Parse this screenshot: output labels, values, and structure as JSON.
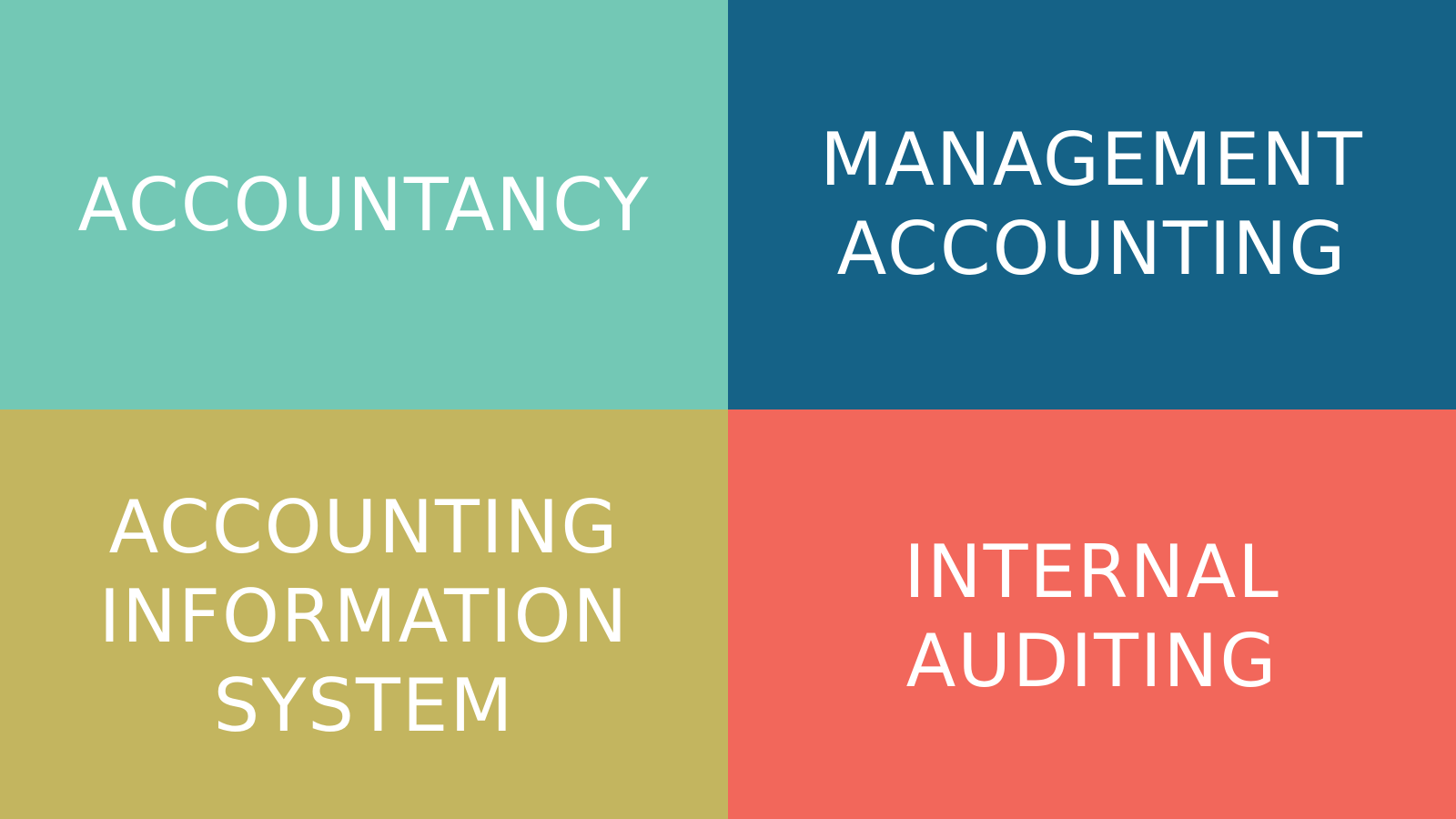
{
  "tiles": {
    "accountancy": {
      "lines": [
        "ACCOUNTANCY"
      ],
      "background": "#73c8b5"
    },
    "management_accounting": {
      "lines": [
        "MANAGEMENT",
        "ACCOUNTING"
      ],
      "background": "#156287"
    },
    "accounting_information_system": {
      "lines": [
        "ACCOUNTING",
        "INFORMATION",
        "SYSTEM"
      ],
      "background": "#c3b55f"
    },
    "internal_auditing": {
      "lines": [
        "INTERNAL",
        "AUDITING"
      ],
      "background": "#f2675b"
    }
  },
  "text_color": "#ffffff"
}
